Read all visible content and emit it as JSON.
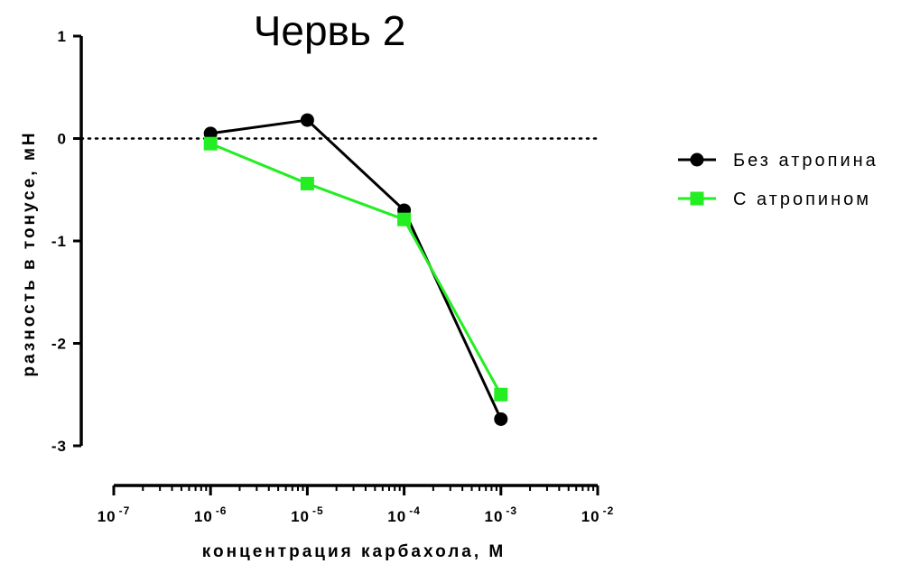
{
  "chart_data": {
    "type": "line",
    "title": "Червь 2",
    "xlabel": "концентрация карбахола, М",
    "ylabel": "разность в тонусе, мН",
    "x_scale": "log10",
    "x": [
      1e-06,
      1e-05,
      0.0001,
      0.001
    ],
    "xlim": [
      1e-07,
      0.01
    ],
    "ylim": [
      -3,
      1
    ],
    "x_ticks": [
      {
        "base": "10",
        "exp": "-7"
      },
      {
        "base": "10",
        "exp": "-6"
      },
      {
        "base": "10",
        "exp": "-5"
      },
      {
        "base": "10",
        "exp": "-4"
      },
      {
        "base": "10",
        "exp": "-3"
      },
      {
        "base": "10",
        "exp": "-2"
      }
    ],
    "y_ticks": [
      "1",
      "0",
      "-1",
      "-2",
      "-3"
    ],
    "reference_line": {
      "y": 0,
      "style": "dotted"
    },
    "legend_position": "right",
    "series": [
      {
        "name": "Без атропина",
        "marker": "circle",
        "color": "#000000",
        "values": [
          0.05,
          0.18,
          -0.7,
          -2.74
        ]
      },
      {
        "name": "С атропином",
        "marker": "square",
        "color": "#22ee22",
        "values": [
          -0.05,
          -0.44,
          -0.79,
          -2.5
        ]
      }
    ]
  }
}
